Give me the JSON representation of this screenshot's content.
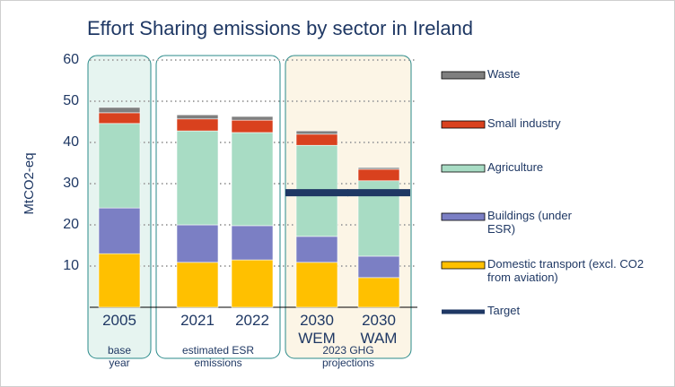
{
  "chart_data": {
    "type": "bar",
    "stacked": true,
    "title": "Effort Sharing emissions by sector in Ireland",
    "y_label": "MtCO2-eq",
    "categories": [
      "2005",
      "2021",
      "2022",
      "2030 WEM",
      "2030 WAM"
    ],
    "annotations": [
      "base year",
      "estimated ESR emissions",
      "2023 GHG projections"
    ],
    "series": [
      {
        "name": "Domestic transport (excl. CO2 from aviation)",
        "color": "#ffc000",
        "values": [
          13.0,
          10.9,
          11.5,
          10.9,
          7.2
        ]
      },
      {
        "name": "Buildings (under ESR)",
        "color": "#7b7fc4",
        "values": [
          11.1,
          9.1,
          8.3,
          6.3,
          5.2
        ]
      },
      {
        "name": "Agriculture",
        "color": "#a8dcc4",
        "values": [
          20.5,
          22.8,
          22.6,
          22.1,
          18.3
        ]
      },
      {
        "name": "Small industry",
        "color": "#d9411e",
        "values": [
          2.6,
          2.9,
          3.0,
          2.7,
          2.8
        ]
      },
      {
        "name": "Waste",
        "color": "#7f7f7f",
        "values": [
          1.3,
          1.0,
          0.9,
          0.8,
          0.4
        ]
      },
      {
        "name": "Target",
        "color": "#1f3864",
        "kind": "line",
        "values": [
          null,
          null,
          null,
          27.8,
          27.8
        ]
      }
    ],
    "ylim": [
      0,
      60
    ],
    "yticks": [
      10,
      20,
      30,
      40,
      50,
      60
    ],
    "grid": true,
    "legend": "right"
  }
}
